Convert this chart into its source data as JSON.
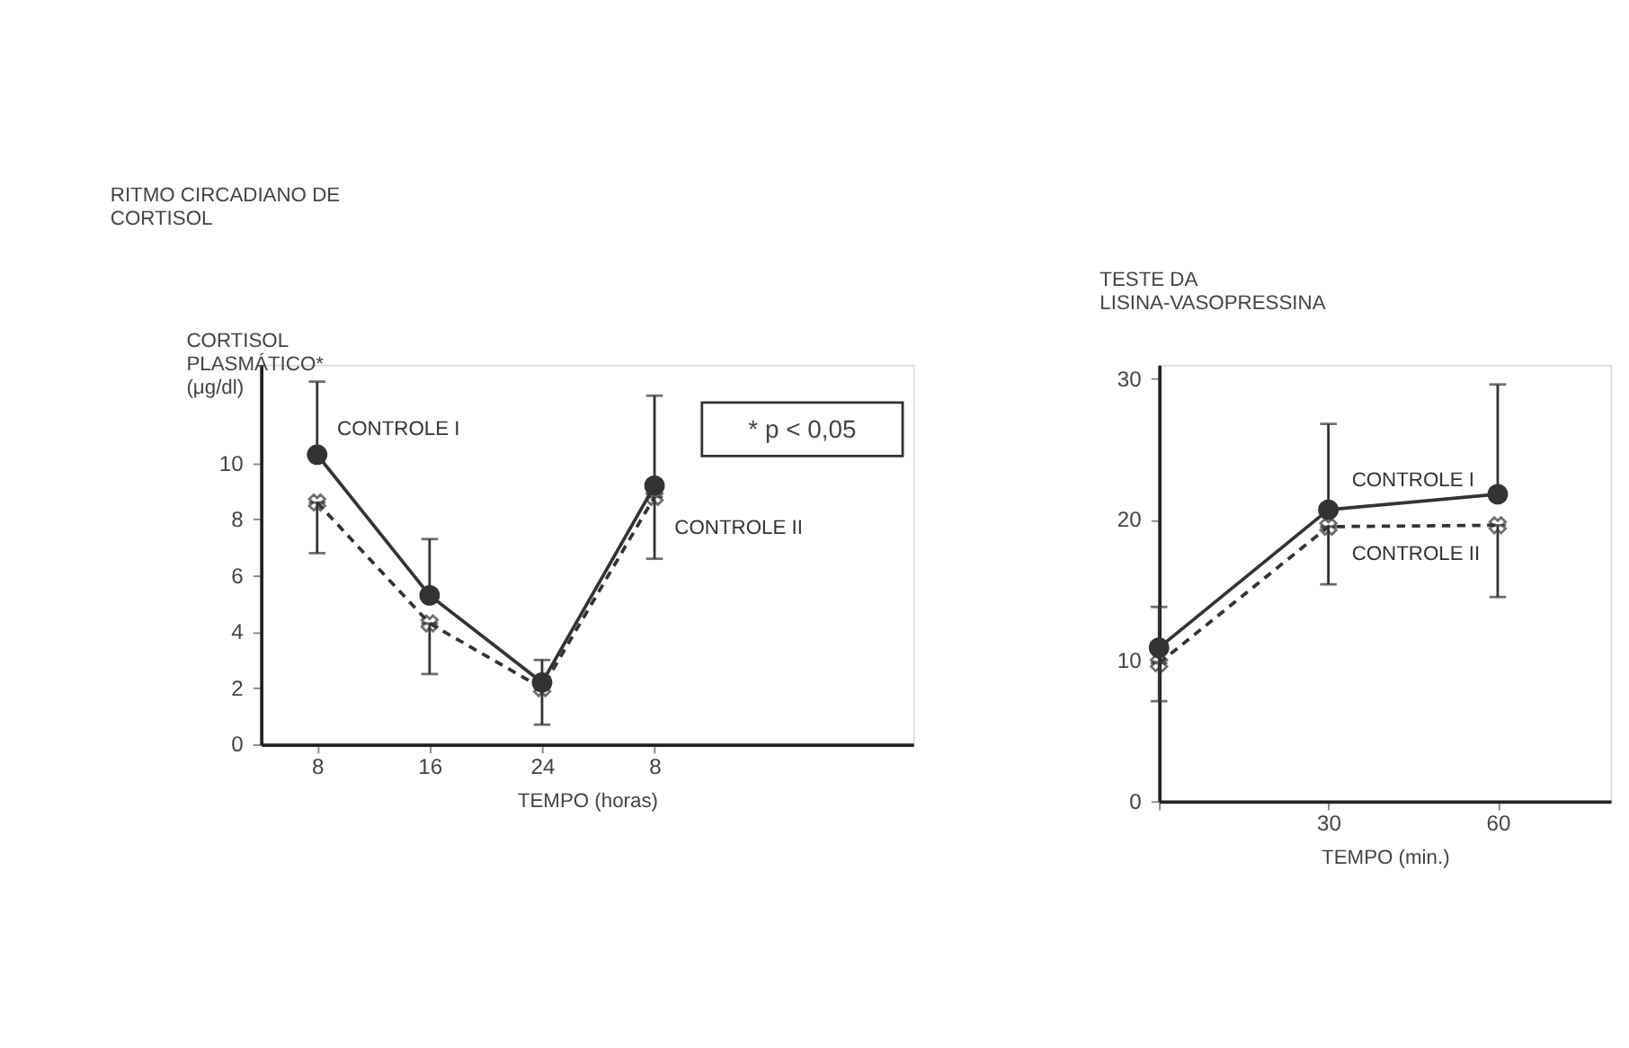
{
  "chart_data": [
    {
      "type": "line",
      "title": "RITMO CIRCADIANO DE CORTISOL",
      "ylabel": "CORTISOL PLASMÁTICO* (μg/dl)",
      "xlabel": "TEMPO (horas)",
      "categories": [
        "8",
        "16",
        "24",
        "8"
      ],
      "ylim": [
        0,
        13.5
      ],
      "yticks": [
        0,
        2,
        4,
        6,
        8,
        10
      ],
      "grid": false,
      "series": [
        {
          "name": "CONTROLE I",
          "color": "#333333",
          "marker": "circle",
          "line_style": "solid",
          "values": [
            10.3,
            5.3,
            2.2,
            9.2
          ],
          "errors": [
            [
              10.3,
              12.9
            ],
            [
              5.3,
              7.3
            ],
            [
              2.2,
              3.0
            ],
            [
              9.2,
              12.4
            ]
          ]
        },
        {
          "name": "CONTROLE II",
          "color": "#333333",
          "marker": "cross",
          "line_style": "dashed",
          "values": [
            8.6,
            4.3,
            2.0,
            8.8
          ],
          "errors": [
            [
              6.8,
              8.6
            ],
            [
              2.5,
              4.3
            ],
            [
              0.7,
              2.0
            ],
            [
              6.6,
              8.8
            ]
          ]
        }
      ],
      "annotations": [
        "* p < 0,05"
      ]
    },
    {
      "type": "line",
      "title": "TESTE DA LISINA-VASOPRESSINA",
      "xlabel": "TEMPO (min.)",
      "x": [
        0,
        30,
        60
      ],
      "xlim": [
        0,
        80
      ],
      "xticks": [
        {
          "value": 0,
          "label": null
        },
        30,
        60
      ],
      "ylim": [
        0,
        31
      ],
      "yticks": [
        0,
        10,
        20,
        30
      ],
      "grid": false,
      "series": [
        {
          "name": "CONTROLE I",
          "color": "#333333",
          "marker": "circle",
          "line_style": "solid",
          "values": [
            10.9,
            20.7,
            21.8
          ],
          "errors": [
            [
              10.9,
              13.8
            ],
            [
              20.7,
              26.8
            ],
            [
              21.8,
              29.6
            ]
          ]
        },
        {
          "name": "CONTROLE II",
          "color": "#333333",
          "marker": "cross",
          "line_style": "dashed",
          "values": [
            9.8,
            19.5,
            19.6
          ],
          "errors": [
            [
              7.1,
              9.8
            ],
            [
              15.4,
              19.5
            ],
            [
              14.5,
              19.6
            ]
          ]
        }
      ]
    }
  ]
}
